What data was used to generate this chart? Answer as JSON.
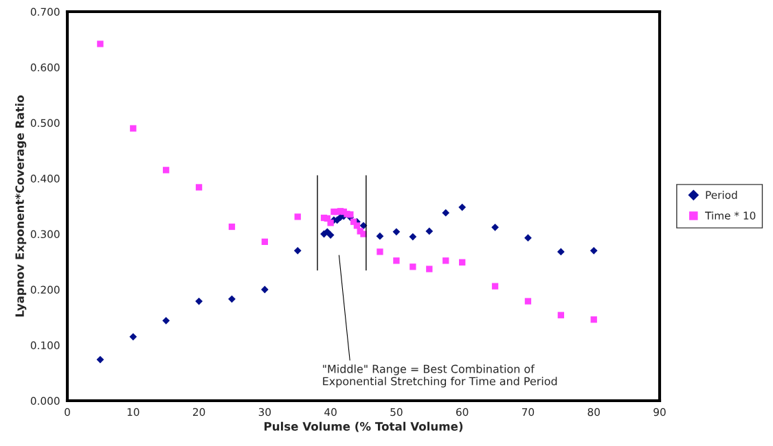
{
  "chart_data": {
    "type": "scatter",
    "xlabel": "Pulse Volume (% Total Volume)",
    "ylabel": "Lyapnov Exponent*Coverage Ratio",
    "xlim": [
      0,
      90
    ],
    "xticks": [
      0,
      10,
      20,
      30,
      40,
      50,
      60,
      70,
      80,
      90
    ],
    "ylim": [
      0,
      0.7
    ],
    "yticks": [
      {
        "value": 0,
        "label": "0.000"
      },
      {
        "value": 0.1,
        "label": "0.100"
      },
      {
        "value": 0.2,
        "label": "0.200"
      },
      {
        "value": 0.3,
        "label": "0.300"
      },
      {
        "value": 0.4,
        "label": "0.400"
      },
      {
        "value": 0.5,
        "label": "0.500"
      },
      {
        "value": 0.6,
        "label": "0.600"
      },
      {
        "value": 0.7,
        "label": "0.700"
      }
    ],
    "grid": false,
    "legend": "right",
    "series": [
      {
        "name": "Period",
        "color": "#000f8c",
        "marker": "diamond",
        "x": [
          5,
          10,
          15,
          20,
          25,
          30,
          35,
          39,
          39.5,
          40,
          40.5,
          41,
          41.5,
          42,
          43,
          44,
          45,
          47.5,
          50,
          52.5,
          55,
          57.5,
          60,
          65,
          70,
          75,
          80
        ],
        "values": [
          0.074,
          0.115,
          0.144,
          0.179,
          0.183,
          0.2,
          0.27,
          0.3,
          0.304,
          0.298,
          0.325,
          0.325,
          0.33,
          0.332,
          0.33,
          0.322,
          0.315,
          0.296,
          0.304,
          0.295,
          0.305,
          0.338,
          0.348,
          0.312,
          0.293,
          0.268,
          0.27
        ]
      },
      {
        "name": "Time * 10",
        "color": "#ff40ff",
        "marker": "square",
        "x": [
          5,
          10,
          15,
          20,
          25,
          30,
          35,
          39,
          39.5,
          40,
          40.5,
          41,
          41.5,
          42,
          42.5,
          43,
          43.5,
          44,
          44.5,
          45,
          47.5,
          50,
          52.5,
          55,
          57.5,
          60,
          65,
          70,
          75,
          80
        ],
        "values": [
          0.642,
          0.49,
          0.415,
          0.384,
          0.313,
          0.286,
          0.331,
          0.329,
          0.328,
          0.32,
          0.34,
          0.34,
          0.341,
          0.34,
          0.336,
          0.335,
          0.322,
          0.315,
          0.305,
          0.3,
          0.268,
          0.252,
          0.241,
          0.237,
          0.252,
          0.249,
          0.206,
          0.179,
          0.154,
          0.146
        ]
      }
    ],
    "ref_lines": [
      {
        "axis": "x",
        "value": 38.0,
        "color": "#000000"
      },
      {
        "axis": "x",
        "value": 45.4,
        "color": "#000000"
      }
    ],
    "annotations": [
      "\"Middle\" Range = Best Combination of\nExponential Stretching for Time and Period"
    ]
  }
}
